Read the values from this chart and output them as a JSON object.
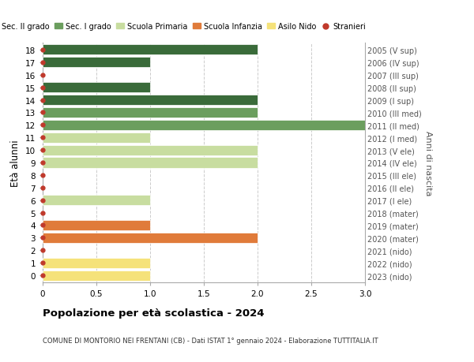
{
  "ages": [
    0,
    1,
    2,
    3,
    4,
    5,
    6,
    7,
    8,
    9,
    10,
    11,
    12,
    13,
    14,
    15,
    16,
    17,
    18
  ],
  "values": [
    1,
    1,
    0,
    2,
    1,
    0,
    1,
    0,
    0,
    2,
    2,
    1,
    3,
    2,
    2,
    1,
    0,
    1,
    2
  ],
  "colors": [
    "#f5e27a",
    "#f5e27a",
    "#f5e27a",
    "#e07b3a",
    "#e07b3a",
    "#e07b3a",
    "#c8dda0",
    "#c8dda0",
    "#c8dda0",
    "#c8dda0",
    "#c8dda0",
    "#c8dda0",
    "#6b9e5e",
    "#6b9e5e",
    "#3a6b3a",
    "#3a6b3a",
    "#3a6b3a",
    "#3a6b3a",
    "#3a6b3a"
  ],
  "right_labels": [
    "2023 (nido)",
    "2022 (nido)",
    "2021 (nido)",
    "2020 (mater)",
    "2019 (mater)",
    "2018 (mater)",
    "2017 (I ele)",
    "2016 (II ele)",
    "2015 (III ele)",
    "2014 (IV ele)",
    "2013 (V ele)",
    "2012 (I med)",
    "2011 (II med)",
    "2010 (III med)",
    "2009 (I sup)",
    "2008 (II sup)",
    "2007 (III sup)",
    "2006 (IV sup)",
    "2005 (V sup)"
  ],
  "legend_labels": [
    "Sec. II grado",
    "Sec. I grado",
    "Scuola Primaria",
    "Scuola Infanzia",
    "Asilo Nido",
    "Stranieri"
  ],
  "legend_colors": [
    "#3a6b3a",
    "#6b9e5e",
    "#c8dda0",
    "#e07b3a",
    "#f5e27a",
    "#c0392b"
  ],
  "ylabel": "Età alunni",
  "ylabel_right": "Anni di nascita",
  "xlim": [
    0,
    3.0
  ],
  "xticks": [
    0,
    0.5,
    1.0,
    1.5,
    2.0,
    2.5,
    3.0
  ],
  "xtick_labels": [
    "0",
    "0.5",
    "1.0",
    "1.5",
    "2.0",
    "2.5",
    "3.0"
  ],
  "title": "Popolazione per età scolastica - 2024",
  "subtitle": "COMUNE DI MONTORIO NEI FRENTANI (CB) - Dati ISTAT 1° gennaio 2024 - Elaborazione TUTTITALIA.IT",
  "dot_color": "#c0392b",
  "bar_height": 0.82,
  "background_color": "#ffffff",
  "grid_color": "#cccccc"
}
